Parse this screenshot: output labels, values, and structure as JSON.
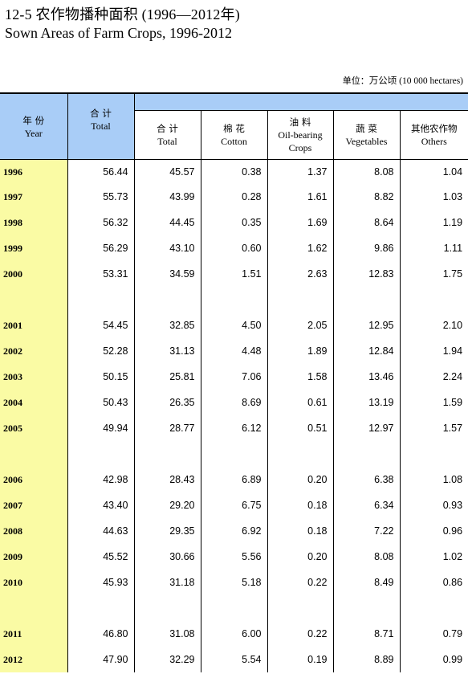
{
  "title": {
    "cn": "12-5  农作物播种面积 (1996—2012年)",
    "en": "Sown Areas of Farm Crops, 1996-2012"
  },
  "unit": {
    "label": "单位：",
    "value": "万公顷 (10 000 hectares)"
  },
  "headers": {
    "year": {
      "cn": "年 份",
      "en": "Year"
    },
    "total": {
      "cn": "合 计",
      "en": "Total"
    },
    "sub_total": {
      "cn": "合 计",
      "en": "Total"
    },
    "cotton": {
      "cn": "棉 花",
      "en": "Cotton"
    },
    "oil": {
      "cn": "油 料",
      "en1": "Oil-bearing",
      "en2": "Crops"
    },
    "veg": {
      "cn": "蔬 菜",
      "en": "Vegetables"
    },
    "others": {
      "cn": "其他农作物",
      "en": "Others"
    }
  },
  "rows": [
    [
      "1996",
      "56.44",
      "45.57",
      "0.38",
      "1.37",
      "8.08",
      "1.04"
    ],
    [
      "1997",
      "55.73",
      "43.99",
      "0.28",
      "1.61",
      "8.82",
      "1.03"
    ],
    [
      "1998",
      "56.32",
      "44.45",
      "0.35",
      "1.69",
      "8.64",
      "1.19"
    ],
    [
      "1999",
      "56.29",
      "43.10",
      "0.60",
      "1.62",
      "9.86",
      "1.11"
    ],
    [
      "2000",
      "53.31",
      "34.59",
      "1.51",
      "2.63",
      "12.83",
      "1.75"
    ],
    [
      "",
      "",
      "",
      "",
      "",
      "",
      ""
    ],
    [
      "2001",
      "54.45",
      "32.85",
      "4.50",
      "2.05",
      "12.95",
      "2.10"
    ],
    [
      "2002",
      "52.28",
      "31.13",
      "4.48",
      "1.89",
      "12.84",
      "1.94"
    ],
    [
      "2003",
      "50.15",
      "25.81",
      "7.06",
      "1.58",
      "13.46",
      "2.24"
    ],
    [
      "2004",
      "50.43",
      "26.35",
      "8.69",
      "0.61",
      "13.19",
      "1.59"
    ],
    [
      "2005",
      "49.94",
      "28.77",
      "6.12",
      "0.51",
      "12.97",
      "1.57"
    ],
    [
      "",
      "",
      "",
      "",
      "",
      "",
      ""
    ],
    [
      "2006",
      "42.98",
      "28.43",
      "6.89",
      "0.20",
      "6.38",
      "1.08"
    ],
    [
      "2007",
      "43.40",
      "29.20",
      "6.75",
      "0.18",
      "6.34",
      "0.93"
    ],
    [
      "2008",
      "44.63",
      "29.35",
      "6.92",
      "0.18",
      "7.22",
      "0.96"
    ],
    [
      "2009",
      "45.52",
      "30.66",
      "5.56",
      "0.20",
      "8.08",
      "1.02"
    ],
    [
      "2010",
      "45.93",
      "31.18",
      "5.18",
      "0.22",
      "8.49",
      "0.86"
    ],
    [
      "",
      "",
      "",
      "",
      "",
      "",
      ""
    ],
    [
      "2011",
      "46.80",
      "31.08",
      "6.00",
      "0.22",
      "8.71",
      "0.79"
    ],
    [
      "2012",
      "47.90",
      "32.29",
      "5.54",
      "0.19",
      "8.89",
      "0.99"
    ]
  ]
}
